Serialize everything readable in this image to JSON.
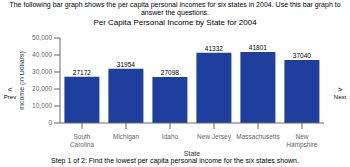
{
  "chart_data": {
    "type": "bar",
    "title": "Per Capita Personal Income by State for 2004",
    "subtitle": "The following bar graph shows the per capita personal incomes for six states in 2004. Use this bar graph to answer the questions.",
    "xlabel": "State",
    "ylabel": "Income (in Dollars)",
    "annotations": [
      "<",
      "Prev",
      ">",
      "Next",
      "Step 1 of 2: Find the lowest per capita personal income for the six states shown."
    ],
    "categories": [
      "South\nCarolina",
      "Michigan",
      "Idaho",
      "New Jersey",
      "Massachusetts",
      "New\nHampshire"
    ],
    "values": [
      27172,
      31954,
      27098,
      41332,
      41801,
      37040
    ],
    "color": "#1f3f9f",
    "ylim": [
      0,
      50000
    ],
    "yticks": [
      0,
      {
        "value": 10000,
        "label": "10,000"
      },
      {
        "value": 20000,
        "label": "20,000"
      },
      {
        "value": 30000,
        "label": "30,000"
      },
      {
        "value": 40000,
        "label": "40,000"
      },
      {
        "value": 50000,
        "label": "50,000"
      }
    ],
    "grid": false,
    "data_labels": true
  }
}
